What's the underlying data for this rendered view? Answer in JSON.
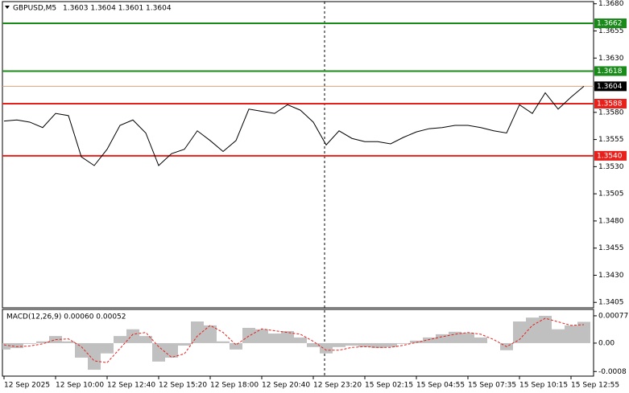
{
  "chart_data": [
    {
      "type": "line",
      "title": "GBPUSD,M5",
      "subtitle": "1.3603 1.3604 1.3601 1.3604",
      "color": "#000000",
      "categories": [
        "12 Sep 2025",
        null,
        null,
        null,
        "12 Sep 10:00",
        null,
        null,
        null,
        "12 Sep 12:40",
        null,
        null,
        null,
        "12 Sep 15:20",
        null,
        null,
        null,
        "12 Sep 18:00",
        null,
        null,
        null,
        "12 Sep 20:40",
        null,
        null,
        null,
        "12 Sep 23:20",
        null,
        null,
        null,
        "15 Sep 02:15",
        null,
        null,
        null,
        "15 Sep 04:55",
        null,
        null,
        null,
        "15 Sep 07:35",
        null,
        null,
        null,
        "15 Sep 10:15",
        null,
        null,
        null,
        "15 Sep 12:55",
        null
      ],
      "values": [
        1.3572,
        1.3573,
        1.3571,
        1.3566,
        1.3579,
        1.3577,
        1.3539,
        1.3531,
        1.3546,
        1.3568,
        1.3573,
        1.3561,
        1.3531,
        1.3542,
        1.3546,
        1.3563,
        1.3554,
        1.3544,
        1.3554,
        1.3583,
        1.3581,
        1.3579,
        1.3587,
        1.3582,
        1.3571,
        1.355,
        1.3563,
        1.3556,
        1.3553,
        1.3553,
        1.3551,
        1.3557,
        1.3562,
        1.3565,
        1.3566,
        1.3568,
        1.3568,
        1.3566,
        1.3563,
        1.3561,
        1.3587,
        1.3579,
        1.3598,
        1.3583,
        1.3594,
        1.3604
      ],
      "ylim": [
        1.34,
        1.3682
      ],
      "yticks": [
        {
          "value": 1.368,
          "label": "1.3680"
        },
        1.3655,
        {
          "value": 1.363,
          "label": "1.3630"
        },
        {
          "value": 1.358,
          "label": "1.3580"
        },
        1.3555,
        {
          "value": 1.353,
          "label": "1.3530"
        },
        1.3505,
        {
          "value": 1.348,
          "label": "1.3480"
        },
        1.3455,
        {
          "value": 1.343,
          "label": "1.3430"
        },
        1.3405
      ],
      "levels": [
        {
          "value": 1.3662,
          "label": "1.3662",
          "color": "#1a8a1a"
        },
        {
          "value": 1.3618,
          "label": "1.3618",
          "color": "#1a8a1a"
        },
        {
          "value": 1.3588,
          "label": "1.3588",
          "color": "#e8201c"
        },
        {
          "value": 1.354,
          "label": "1.3540",
          "color": "#e8201c"
        }
      ],
      "current": {
        "value": 1.3604,
        "label": "1.3604",
        "color": "#d9a27a"
      }
    },
    {
      "type": "bar",
      "title": "MACD(12,26,9) 0.00060 0.00052",
      "histogram": {
        "color": "#c0c0c0",
        "values": [
          -0.00018,
          -0.00014,
          -2e-05,
          5e-05,
          0.0002,
          5e-05,
          -0.00041,
          -0.00075,
          -0.00029,
          0.0002,
          0.00039,
          0.0002,
          -0.00052,
          -0.00041,
          -7e-05,
          0.00061,
          0.0005,
          5e-05,
          -0.00018,
          0.00043,
          0.00039,
          0.00027,
          0.00034,
          0.00016,
          -0.00011,
          -0.00029,
          -0.00011,
          -7e-05,
          -0.00011,
          -0.00014,
          -0.00011,
          -2e-05,
          7e-05,
          0.00016,
          0.00025,
          0.00032,
          0.00029,
          0.00016,
          0,
          -0.0002,
          0.00061,
          0.00072,
          0.00077,
          0.00039,
          0.0005,
          0.0006
        ]
      },
      "signal": {
        "color": "#e8201c",
        "values": [
          -5e-05,
          -0.0001,
          -8e-05,
          -2e-05,
          0.0001,
          0.00012,
          -0.0001,
          -0.0005,
          -0.00055,
          -0.00015,
          0.00025,
          0.0003,
          -0.0001,
          -0.0004,
          -0.0003,
          0.0002,
          0.0005,
          0.0003,
          -5e-05,
          0.0002,
          0.0004,
          0.00035,
          0.0003,
          0.00025,
          5e-05,
          -0.0002,
          -0.0002,
          -0.00012,
          -0.0001,
          -0.00012,
          -0.00012,
          -6e-05,
          2e-05,
          0.0001,
          0.00018,
          0.00025,
          0.0003,
          0.00025,
          0.0001,
          -0.0001,
          0.0001,
          0.0005,
          0.0007,
          0.0006,
          0.0005,
          0.00052
        ]
      },
      "ylim": [
        -0.00093,
        0.00095
      ],
      "yticks": [
        0.00077,
        {
          "value": 0,
          "label": "0.00"
        },
        -0.0008
      ]
    }
  ]
}
